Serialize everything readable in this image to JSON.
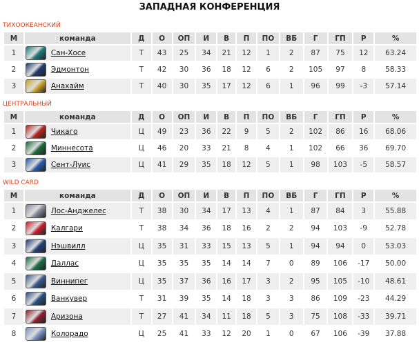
{
  "title": "ЗАПАДНАЯ КОНФЕРЕНЦИЯ",
  "columns": [
    "М",
    "команда",
    "Д",
    "О",
    "ОП",
    "И",
    "В",
    "П",
    "ПО",
    "ВБ",
    "Г",
    "ГП",
    "Р",
    "%"
  ],
  "sections": [
    {
      "label": "ТИХООКЕАНСКИЙ",
      "rows": [
        [
          "1",
          "Сан-Хосе",
          "Т",
          "43",
          "25",
          "34",
          "21",
          "12",
          "1",
          "2",
          "87",
          "75",
          "12",
          "63.24"
        ],
        [
          "2",
          "Эдмонтон",
          "Т",
          "42",
          "30",
          "36",
          "18",
          "12",
          "6",
          "2",
          "105",
          "97",
          "8",
          "58.33"
        ],
        [
          "3",
          "Анахайм",
          "Т",
          "40",
          "30",
          "35",
          "17",
          "12",
          "6",
          "1",
          "96",
          "99",
          "-3",
          "57.14"
        ]
      ],
      "logos": [
        "#1f7a7a",
        "#1e3a6e",
        "#c9a227"
      ]
    },
    {
      "label": "ЦЕНТРАЛЬНЫЙ",
      "rows": [
        [
          "1",
          "Чикаго",
          "Ц",
          "49",
          "23",
          "36",
          "22",
          "9",
          "5",
          "2",
          "102",
          "86",
          "16",
          "68.06"
        ],
        [
          "2",
          "Миннесота",
          "Ц",
          "46",
          "20",
          "33",
          "21",
          "8",
          "4",
          "1",
          "102",
          "66",
          "36",
          "69.70"
        ],
        [
          "3",
          "Сент-Луис",
          "Ц",
          "41",
          "29",
          "35",
          "18",
          "12",
          "5",
          "1",
          "98",
          "103",
          "-5",
          "58.57"
        ]
      ],
      "logos": [
        "#b5261e",
        "#1c6b3a",
        "#2a5aa8"
      ]
    },
    {
      "label": "WILD CARD",
      "rows": [
        [
          "1",
          "Лос-Анджелес",
          "Т",
          "38",
          "30",
          "34",
          "17",
          "13",
          "4",
          "1",
          "87",
          "84",
          "3",
          "55.88"
        ],
        [
          "2",
          "Калгари",
          "Т",
          "38",
          "34",
          "36",
          "18",
          "16",
          "2",
          "2",
          "94",
          "103",
          "-9",
          "52.78"
        ],
        [
          "3",
          "Нэшвилл",
          "Ц",
          "35",
          "31",
          "33",
          "15",
          "13",
          "5",
          "1",
          "94",
          "94",
          "0",
          "53.03"
        ],
        [
          "4",
          "Даллас",
          "Ц",
          "35",
          "35",
          "35",
          "14",
          "14",
          "7",
          "0",
          "89",
          "106",
          "-17",
          "50.00"
        ],
        [
          "5",
          "Виннипег",
          "Ц",
          "35",
          "37",
          "36",
          "16",
          "17",
          "3",
          "2",
          "95",
          "105",
          "-10",
          "48.61"
        ],
        [
          "6",
          "Ванкувер",
          "Т",
          "31",
          "39",
          "35",
          "14",
          "18",
          "3",
          "3",
          "86",
          "109",
          "-23",
          "44.29"
        ],
        [
          "7",
          "Аризона",
          "Т",
          "27",
          "41",
          "34",
          "11",
          "18",
          "5",
          "3",
          "75",
          "108",
          "-33",
          "39.71"
        ],
        [
          "8",
          "Колорадо",
          "Ц",
          "25",
          "41",
          "33",
          "12",
          "20",
          "1",
          "0",
          "67",
          "106",
          "-39",
          "37.88"
        ]
      ],
      "logos": [
        "#8a8a9a",
        "#c8202e",
        "#23407a",
        "#1a6e48",
        "#3a5a8c",
        "#2a4f80",
        "#8c2030",
        "#7a95c8"
      ]
    }
  ]
}
